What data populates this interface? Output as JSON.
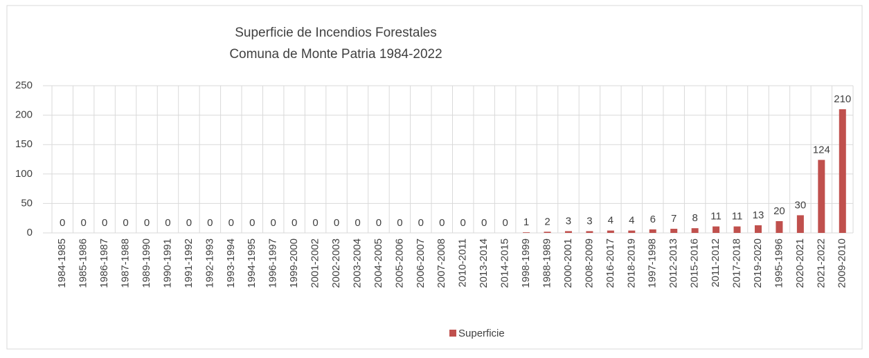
{
  "chart_data": {
    "type": "bar",
    "title": "Superficie de Incendios Forestales",
    "subtitle": "Comuna de Monte Patria 1984-2022",
    "categories": [
      "1984-1985",
      "1985-1986",
      "1986-1987",
      "1987-1988",
      "1989-1990",
      "1990-1991",
      "1991-1992",
      "1992-1993",
      "1993-1994",
      "1994-1995",
      "1996-1997",
      "1999-2000",
      "2001-2002",
      "2002-2003",
      "2003-2004",
      "2004-2005",
      "2005-2006",
      "2006-2007",
      "2007-2008",
      "2010-2011",
      "2013-2014",
      "2014-2015",
      "1998-1999",
      "1988-1989",
      "2000-2001",
      "2008-2009",
      "2016-2017",
      "2018-2019",
      "1997-1998",
      "2012-2013",
      "2015-2016",
      "2011-2012",
      "2017-2018",
      "2019-2020",
      "1995-1996",
      "2020-2021",
      "2021-2022",
      "2009-2010"
    ],
    "series": [
      {
        "name": "Superficie",
        "color": "#c0504d",
        "values": [
          0,
          0,
          0,
          0,
          0,
          0,
          0,
          0,
          0,
          0,
          0,
          0,
          0,
          0,
          0,
          0,
          0,
          0,
          0,
          0,
          0,
          0,
          1,
          2,
          3,
          3,
          4,
          4,
          6,
          7,
          8,
          11,
          11,
          13,
          20,
          30,
          124,
          210
        ]
      }
    ],
    "ylim": [
      0,
      250
    ],
    "yticks": [
      0,
      50,
      100,
      150,
      200,
      250
    ],
    "grid": true,
    "legend": "bottom"
  }
}
